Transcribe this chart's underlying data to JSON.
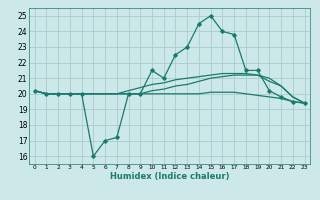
{
  "title": "",
  "xlabel": "Humidex (Indice chaleur)",
  "xlim": [
    -0.5,
    23.5
  ],
  "ylim": [
    15.5,
    25.5
  ],
  "yticks": [
    16,
    17,
    18,
    19,
    20,
    21,
    22,
    23,
    24,
    25
  ],
  "xticks": [
    0,
    1,
    2,
    3,
    4,
    5,
    6,
    7,
    8,
    9,
    10,
    11,
    12,
    13,
    14,
    15,
    16,
    17,
    18,
    19,
    20,
    21,
    22,
    23
  ],
  "background_color": "#cce8e8",
  "grid_color": "#aacccc",
  "line_color": "#1a7a6e",
  "lines": [
    {
      "x": [
        0,
        1,
        2,
        3,
        4,
        5,
        6,
        7,
        8,
        9,
        10,
        11,
        12,
        13,
        14,
        15,
        16,
        17,
        18,
        19,
        20,
        21,
        22,
        23
      ],
      "y": [
        20.2,
        20.0,
        20.0,
        20.0,
        20.0,
        16.0,
        17.0,
        17.2,
        20.0,
        20.0,
        21.5,
        21.0,
        22.5,
        23.0,
        24.5,
        25.0,
        24.0,
        23.8,
        21.5,
        21.5,
        20.2,
        19.8,
        19.5,
        19.4
      ],
      "marker": true
    },
    {
      "x": [
        0,
        1,
        2,
        3,
        4,
        5,
        6,
        7,
        8,
        9,
        10,
        11,
        12,
        13,
        14,
        15,
        16,
        17,
        18,
        19,
        20,
        21,
        22,
        23
      ],
      "y": [
        20.2,
        20.0,
        20.0,
        20.0,
        20.0,
        20.0,
        20.0,
        20.0,
        20.2,
        20.4,
        20.6,
        20.7,
        20.9,
        21.0,
        21.1,
        21.2,
        21.3,
        21.3,
        21.3,
        21.2,
        21.0,
        20.5,
        19.8,
        19.4
      ],
      "marker": false
    },
    {
      "x": [
        0,
        1,
        2,
        3,
        4,
        5,
        6,
        7,
        8,
        9,
        10,
        11,
        12,
        13,
        14,
        15,
        16,
        17,
        18,
        19,
        20,
        21,
        22,
        23
      ],
      "y": [
        20.2,
        20.0,
        20.0,
        20.0,
        20.0,
        20.0,
        20.0,
        20.0,
        20.0,
        20.0,
        20.0,
        20.0,
        20.0,
        20.0,
        20.0,
        20.1,
        20.1,
        20.1,
        20.0,
        19.9,
        19.8,
        19.7,
        19.5,
        19.4
      ],
      "marker": false
    },
    {
      "x": [
        0,
        1,
        2,
        3,
        4,
        5,
        6,
        7,
        8,
        9,
        10,
        11,
        12,
        13,
        14,
        15,
        16,
        17,
        18,
        19,
        20,
        21,
        22,
        23
      ],
      "y": [
        20.2,
        20.0,
        20.0,
        20.0,
        20.0,
        20.0,
        20.0,
        20.0,
        20.0,
        20.0,
        20.2,
        20.3,
        20.5,
        20.6,
        20.8,
        21.0,
        21.1,
        21.2,
        21.2,
        21.2,
        20.8,
        20.5,
        19.8,
        19.4
      ],
      "marker": false
    }
  ]
}
